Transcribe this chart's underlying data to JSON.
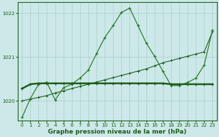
{
  "title": "Graphe pression niveau de la mer (hPa)",
  "bg_color": "#cce8e8",
  "grid_color": "#aacccc",
  "line_color_dark": "#1a5c1a",
  "line_color_med": "#2a7a2a",
  "xlim": [
    -0.5,
    23.5
  ],
  "ylim": [
    1019.55,
    1022.25
  ],
  "yticks": [
    1020,
    1021,
    1022
  ],
  "xticks": [
    0,
    1,
    2,
    3,
    4,
    5,
    6,
    7,
    8,
    9,
    10,
    11,
    12,
    13,
    14,
    15,
    16,
    17,
    18,
    19,
    20,
    21,
    22,
    23
  ],
  "series1_x": [
    0,
    1,
    2,
    3,
    4,
    5,
    6,
    7,
    8,
    9,
    10,
    11,
    12,
    13,
    14,
    15,
    16,
    17,
    18,
    19,
    20,
    21,
    22,
    23
  ],
  "series1_y": [
    1019.62,
    1020.05,
    1020.38,
    1020.42,
    1020.02,
    1020.3,
    1020.38,
    1020.52,
    1020.7,
    1021.08,
    1021.45,
    1021.72,
    1022.02,
    1022.12,
    1021.72,
    1021.32,
    1021.02,
    1020.68,
    1020.35,
    1020.35,
    1020.42,
    1020.52,
    1020.82,
    1021.62
  ],
  "series2_x": [
    0,
    1,
    2,
    3,
    4,
    5,
    6,
    7,
    8,
    9,
    10,
    11,
    12,
    13,
    14,
    15,
    16,
    17,
    18,
    19,
    20,
    21,
    22,
    23
  ],
  "series2_y": [
    1020.28,
    1020.38,
    1020.4,
    1020.4,
    1020.4,
    1020.4,
    1020.4,
    1020.4,
    1020.4,
    1020.4,
    1020.4,
    1020.4,
    1020.4,
    1020.4,
    1020.4,
    1020.4,
    1020.4,
    1020.4,
    1020.38,
    1020.38,
    1020.38,
    1020.38,
    1020.38,
    1020.38
  ],
  "series3_x": [
    0,
    1,
    2,
    3,
    4,
    5,
    6,
    7,
    8,
    9,
    10,
    11,
    12,
    13,
    14,
    15,
    16,
    17,
    18,
    19,
    20,
    21,
    22,
    23
  ],
  "series3_y": [
    1020.0,
    1020.04,
    1020.08,
    1020.12,
    1020.18,
    1020.23,
    1020.28,
    1020.33,
    1020.38,
    1020.43,
    1020.48,
    1020.53,
    1020.58,
    1020.63,
    1020.68,
    1020.73,
    1020.8,
    1020.87,
    1020.92,
    1020.97,
    1021.02,
    1021.07,
    1021.12,
    1021.58
  ],
  "fontsize_title": 6.5,
  "fontsize_ticks": 5.2
}
